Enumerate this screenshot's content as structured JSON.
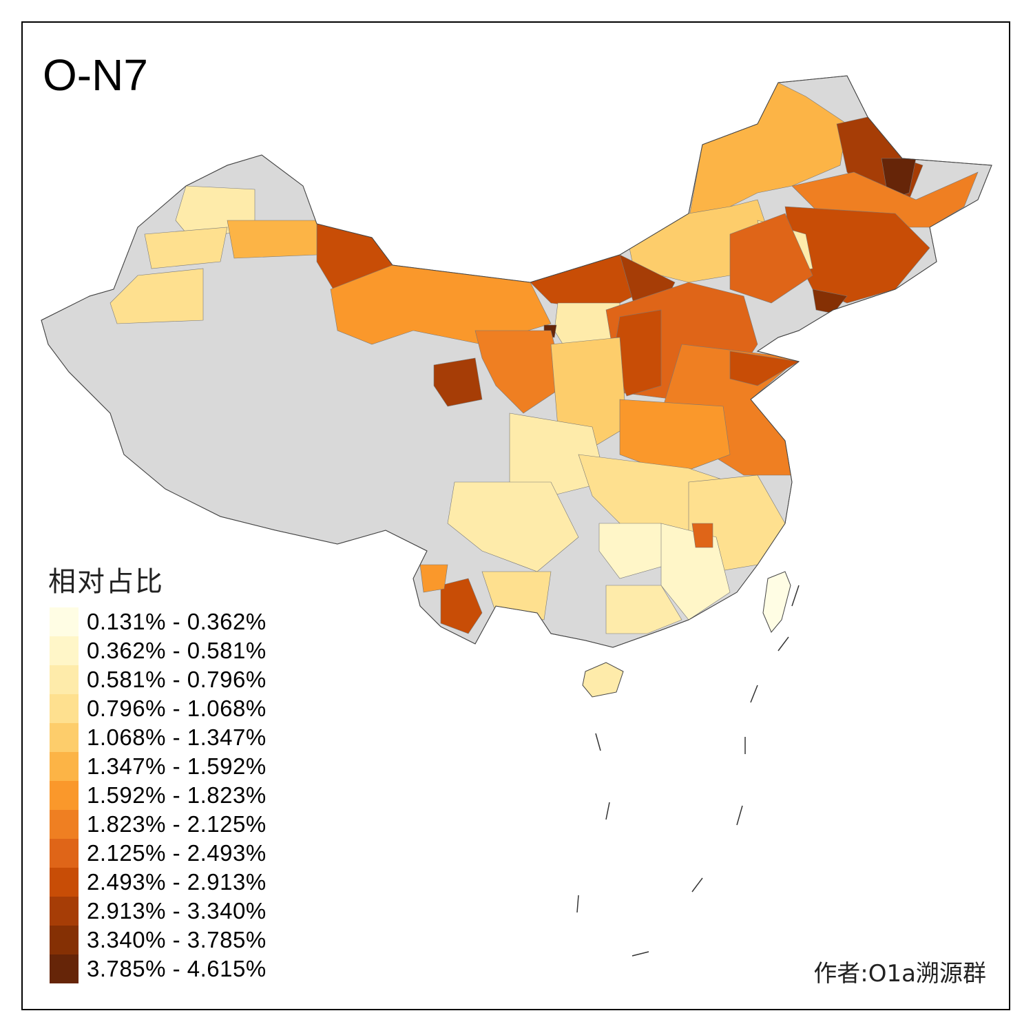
{
  "title": "O-N7",
  "legend": {
    "title": "相对占比",
    "classes": [
      {
        "label": "0.131% - 0.362%",
        "color": "#FFFDE4"
      },
      {
        "label": "0.362% - 0.581%",
        "color": "#FFF6C8"
      },
      {
        "label": "0.581% - 0.796%",
        "color": "#FEEBAA"
      },
      {
        "label": "0.796% - 1.068%",
        "color": "#FEE08F"
      },
      {
        "label": "1.068% - 1.347%",
        "color": "#FDCD6B"
      },
      {
        "label": "1.347% - 1.592%",
        "color": "#FCB446"
      },
      {
        "label": "1.592% - 1.823%",
        "color": "#FA982B"
      },
      {
        "label": "1.823% - 2.125%",
        "color": "#EF7F22"
      },
      {
        "label": "2.125% - 2.493%",
        "color": "#DF6518"
      },
      {
        "label": "2.493% - 2.913%",
        "color": "#C84D06"
      },
      {
        "label": "2.913% - 3.340%",
        "color": "#A63D06"
      },
      {
        "label": "3.340% - 3.785%",
        "color": "#853004"
      },
      {
        "label": "3.785% - 4.615%",
        "color": "#662508"
      }
    ],
    "no_data_color": "#D9D9D9"
  },
  "author": "作者:O1a溯源群"
}
